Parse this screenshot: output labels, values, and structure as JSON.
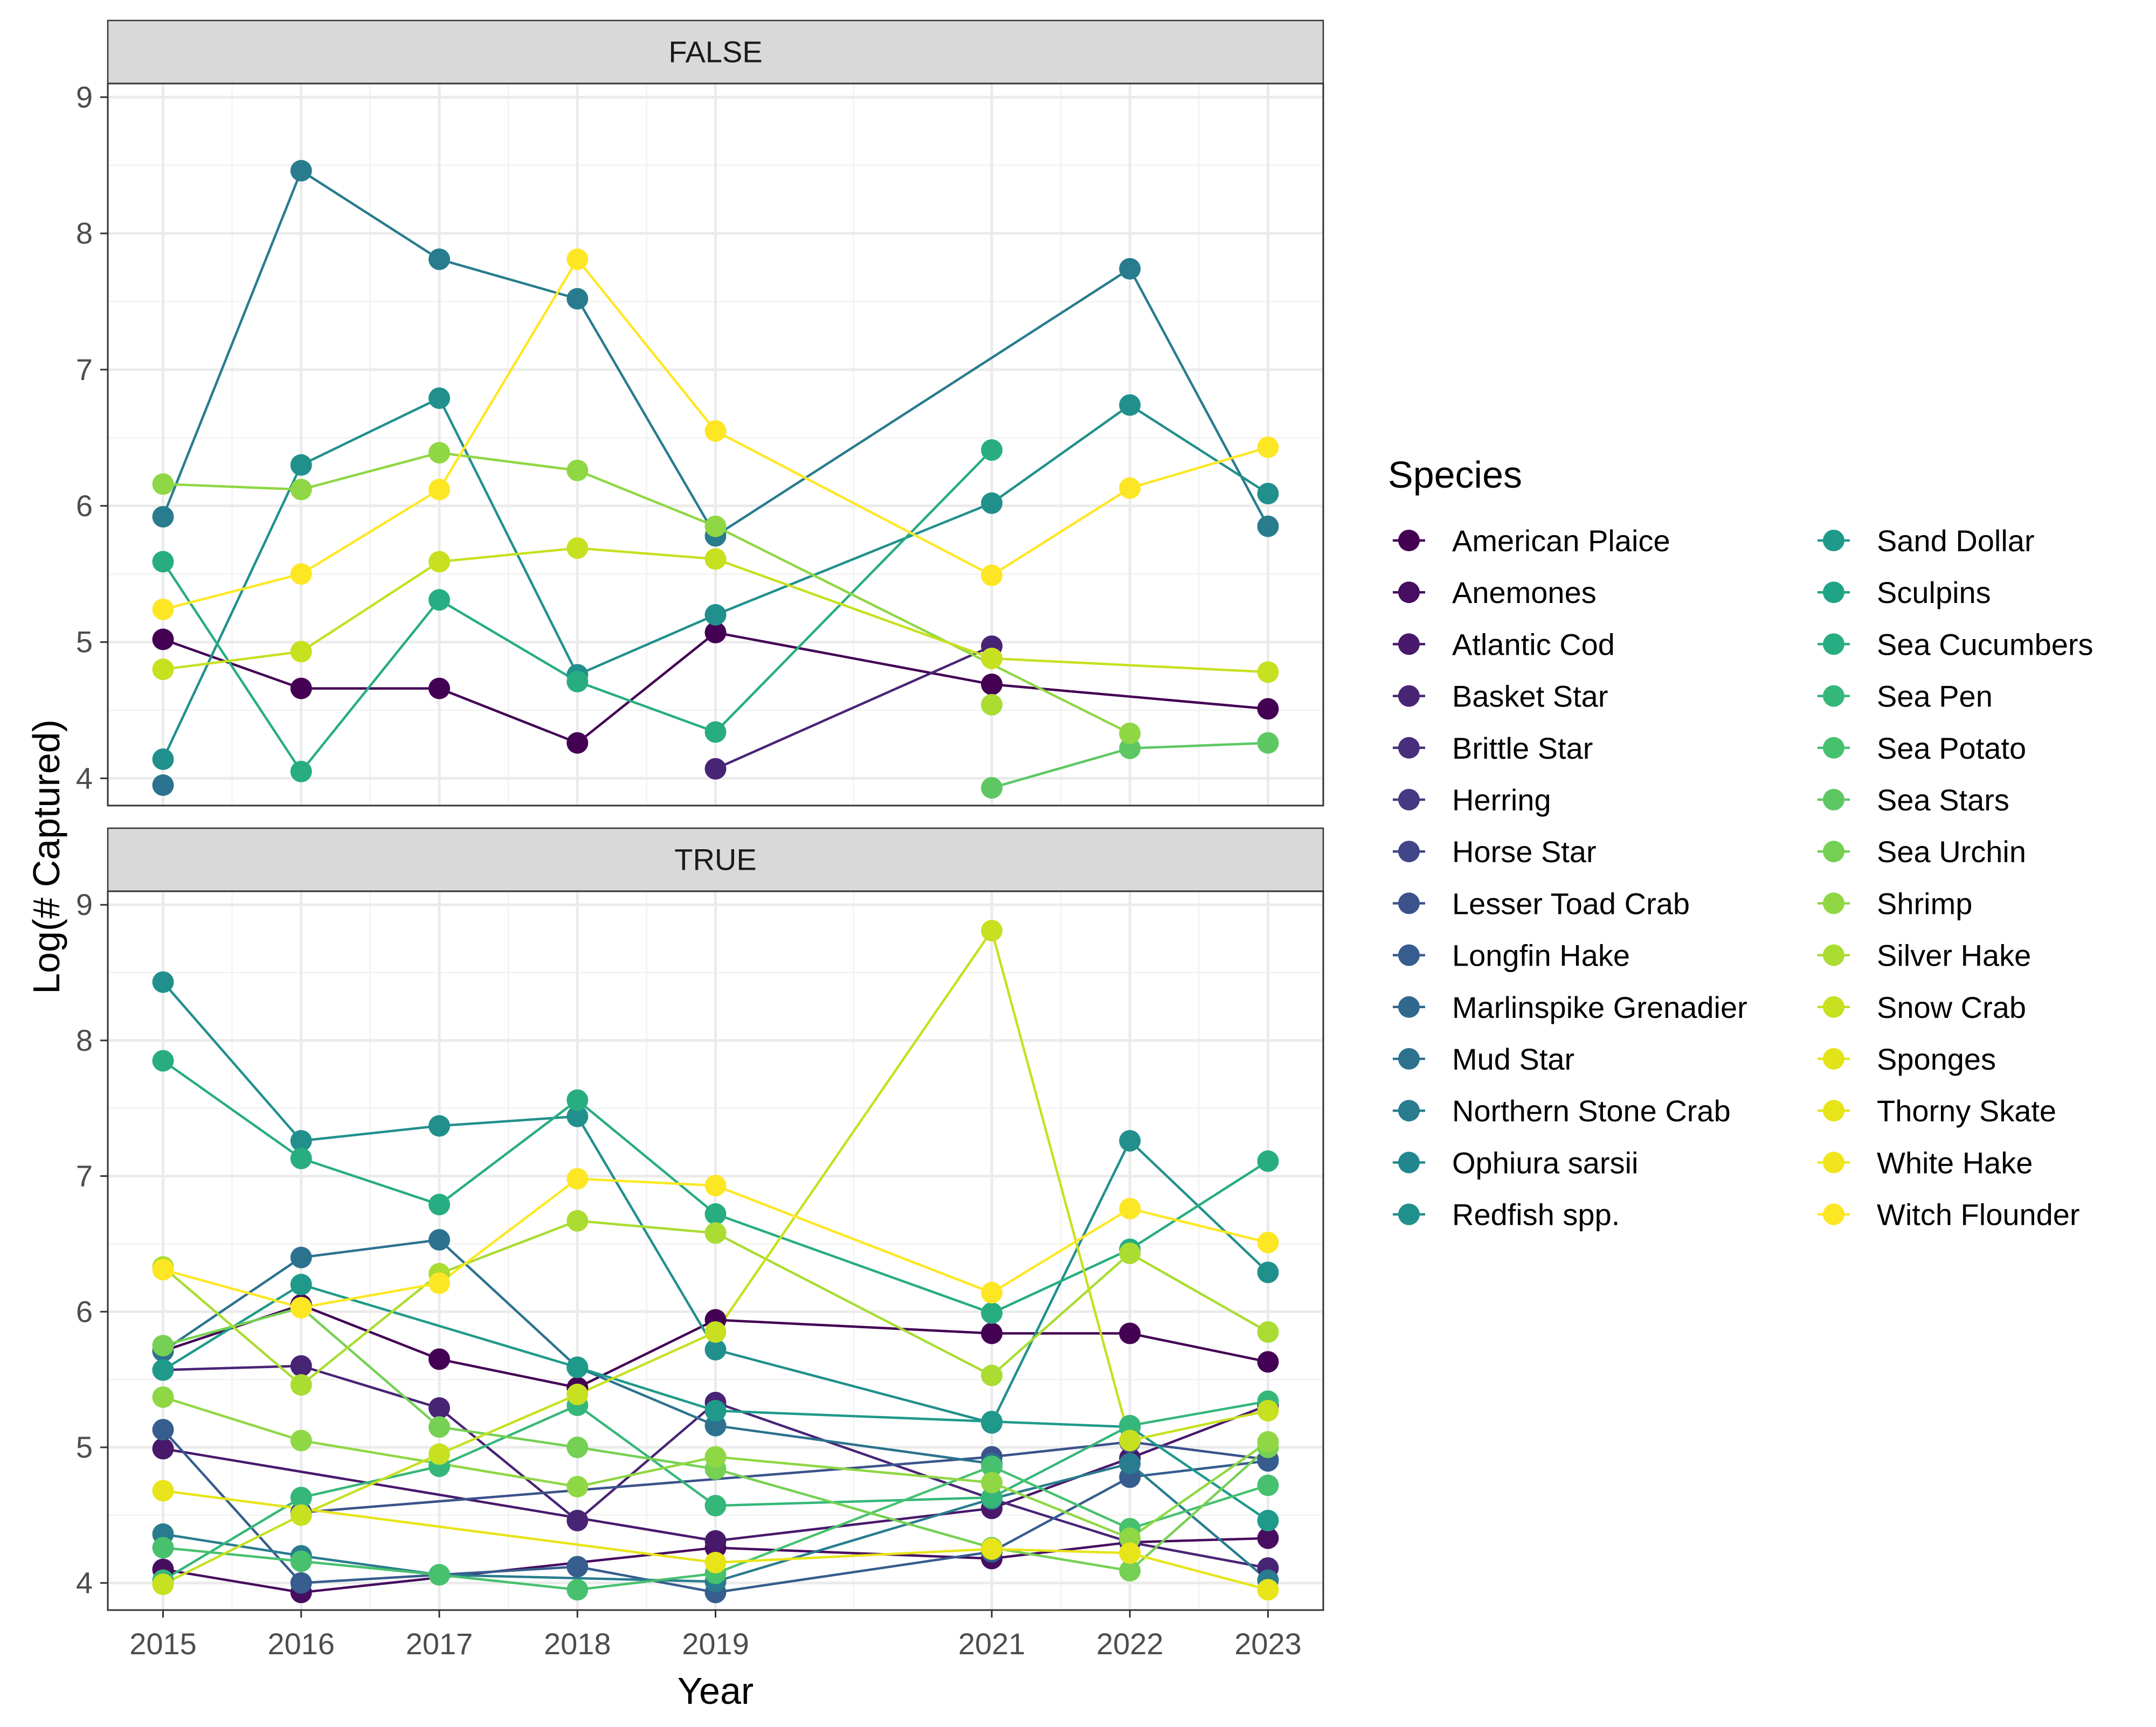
{
  "chart_data": {
    "type": "line",
    "xlabel": "Year",
    "ylabel": "Log(# Captured)",
    "x_ticks": [
      2015,
      2016,
      2017,
      2018,
      2019,
      2021,
      2022,
      2023
    ],
    "y_ticks": [
      4,
      5,
      6,
      7,
      8,
      9
    ],
    "ylim": [
      3.8,
      9.1
    ],
    "grid": true,
    "legend": {
      "title": "Species",
      "position": "right",
      "columns": 2
    },
    "species": [
      {
        "name": "American Plaice",
        "color": "#440154"
      },
      {
        "name": "Anemones",
        "color": "#470D60"
      },
      {
        "name": "Atlantic Cod",
        "color": "#48196B"
      },
      {
        "name": "Basket Star",
        "color": "#482475"
      },
      {
        "name": "Brittle Star",
        "color": "#472F7D"
      },
      {
        "name": "Herring",
        "color": "#443983"
      },
      {
        "name": "Horse Star",
        "color": "#404688"
      },
      {
        "name": "Lesser Toad Crab",
        "color": "#3B528B"
      },
      {
        "name": "Longfin Hake",
        "color": "#365D8D"
      },
      {
        "name": "Marlinspike Grenadier",
        "color": "#31688E"
      },
      {
        "name": "Mud Star",
        "color": "#2C728E"
      },
      {
        "name": "Northern Stone Crab",
        "color": "#287C8E"
      },
      {
        "name": "Ophiura sarsii",
        "color": "#24868E"
      },
      {
        "name": "Redfish spp.",
        "color": "#21908C"
      },
      {
        "name": "Sand Dollar",
        "color": "#1F9A8A"
      },
      {
        "name": "Sculpins",
        "color": "#20A486"
      },
      {
        "name": "Sea Cucumbers",
        "color": "#27AD81"
      },
      {
        "name": "Sea Pen",
        "color": "#35B779"
      },
      {
        "name": "Sea Potato",
        "color": "#47C16E"
      },
      {
        "name": "Sea Stars",
        "color": "#5DC863"
      },
      {
        "name": "Sea Urchin",
        "color": "#75D054"
      },
      {
        "name": "Shrimp",
        "color": "#8FD744"
      },
      {
        "name": "Silver Hake",
        "color": "#AADC32"
      },
      {
        "name": "Snow Crab",
        "color": "#C7E020"
      },
      {
        "name": "Sponges",
        "color": "#E3E418"
      },
      {
        "name": "Thorny Skate",
        "color": "#E7E419"
      },
      {
        "name": "White Hake",
        "color": "#F1E51D"
      },
      {
        "name": "Witch Flounder",
        "color": "#FDE725"
      }
    ],
    "panels": [
      {
        "title": "FALSE",
        "series": [
          {
            "name": "American Plaice",
            "x": [
              2015,
              2016,
              2017,
              2018,
              2019,
              2021,
              2023
            ],
            "y": [
              5.02,
              4.66,
              4.66,
              4.26,
              5.07,
              4.69,
              4.51
            ]
          },
          {
            "name": "Basket Star",
            "x": [
              2019,
              2021
            ],
            "y": [
              4.07,
              4.97
            ]
          },
          {
            "name": "Mud Star",
            "x": [
              2015
            ],
            "y": [
              3.95
            ]
          },
          {
            "name": "Northern Stone Crab",
            "x": [
              2015,
              2016,
              2017,
              2018,
              2019,
              2022,
              2023
            ],
            "y": [
              5.92,
              8.46,
              7.81,
              7.52,
              5.78,
              7.74,
              5.85
            ]
          },
          {
            "name": "Redfish spp.",
            "x": [
              2015,
              2016,
              2017,
              2018,
              2019,
              2021,
              2022,
              2023
            ],
            "y": [
              4.14,
              6.3,
              6.79,
              4.76,
              5.2,
              6.02,
              6.74,
              6.09
            ]
          },
          {
            "name": "Sea Cucumbers",
            "x": [
              2015,
              2016,
              2017,
              2018,
              2019,
              2021
            ],
            "y": [
              5.59,
              4.05,
              5.31,
              4.71,
              4.34,
              6.41
            ]
          },
          {
            "name": "Sea Stars",
            "x": [
              2021,
              2022,
              2023
            ],
            "y": [
              3.93,
              4.22,
              4.26
            ]
          },
          {
            "name": "Shrimp",
            "x": [
              2015,
              2016,
              2017,
              2018,
              2019,
              2022
            ],
            "y": [
              6.16,
              6.12,
              6.39,
              6.26,
              5.85,
              4.33
            ]
          },
          {
            "name": "Silver Hake",
            "x": [
              2021
            ],
            "y": [
              4.54
            ]
          },
          {
            "name": "Snow Crab",
            "x": [
              2015,
              2016,
              2017,
              2018,
              2019,
              2021,
              2023
            ],
            "y": [
              4.8,
              4.93,
              5.59,
              5.69,
              5.61,
              4.88,
              4.78
            ]
          },
          {
            "name": "Witch Flounder",
            "x": [
              2015,
              2016,
              2017,
              2018,
              2019,
              2021,
              2022,
              2023
            ],
            "y": [
              5.24,
              5.5,
              6.12,
              7.81,
              6.55,
              5.49,
              6.13,
              6.43
            ]
          }
        ]
      },
      {
        "title": "TRUE",
        "series": [
          {
            "name": "American Plaice",
            "x": [
              2015,
              2016,
              2017,
              2018,
              2019,
              2021,
              2022,
              2023
            ],
            "y": [
              5.71,
              6.05,
              5.65,
              5.44,
              5.94,
              5.84,
              5.84,
              5.63
            ]
          },
          {
            "name": "Anemones",
            "x": [
              2015,
              2016,
              2019,
              2021,
              2022,
              2023
            ],
            "y": [
              4.1,
              3.93,
              4.26,
              4.18,
              4.3,
              4.33
            ]
          },
          {
            "name": "Atlantic Cod",
            "x": [
              2015,
              2019,
              2021,
              2022,
              2023
            ],
            "y": [
              4.99,
              4.31,
              4.55,
              4.92,
              5.31
            ]
          },
          {
            "name": "Basket Star",
            "x": [
              2015,
              2016,
              2017,
              2018,
              2019,
              2021,
              2022,
              2023
            ],
            "y": [
              5.57,
              5.6,
              5.29,
              4.46,
              5.33,
              4.62,
              4.3,
              4.11
            ]
          },
          {
            "name": "Lesser Toad Crab",
            "x": [
              2016,
              2021,
              2022,
              2023
            ],
            "y": [
              4.52,
              4.93,
              5.04,
              4.91
            ]
          },
          {
            "name": "Longfin Hake",
            "x": [
              2015,
              2016,
              2018,
              2019,
              2021,
              2022,
              2023
            ],
            "y": [
              5.13,
              4.0,
              4.12,
              3.93,
              4.23,
              4.78,
              4.9
            ]
          },
          {
            "name": "Northern Stone Crab",
            "x": [
              2015,
              2016,
              2017,
              2019,
              2021,
              2022,
              2023
            ],
            "y": [
              4.36,
              4.2,
              4.06,
              4.01,
              4.62,
              4.88,
              4.02
            ]
          },
          {
            "name": "Mud Star",
            "x": [
              2015,
              2016,
              2017,
              2018,
              2019,
              2021
            ],
            "y": [
              5.71,
              6.4,
              6.53,
              5.59,
              5.16,
              4.88
            ]
          },
          {
            "name": "Redfish spp.",
            "x": [
              2015,
              2016,
              2017,
              2018,
              2019,
              2021,
              2022,
              2023
            ],
            "y": [
              8.43,
              7.26,
              7.37,
              7.44,
              5.72,
              5.18,
              7.26,
              6.29
            ]
          },
          {
            "name": "Sand Dollar",
            "x": [
              2015,
              2016,
              2018,
              2019,
              2021,
              2022,
              2023
            ],
            "y": [
              5.57,
              6.2,
              5.59,
              5.27,
              5.19,
              5.15,
              4.46
            ]
          },
          {
            "name": "Sea Cucumbers",
            "x": [
              2015,
              2016,
              2017,
              2018,
              2019,
              2021,
              2022,
              2023
            ],
            "y": [
              7.85,
              7.13,
              6.79,
              7.56,
              6.72,
              5.99,
              6.46,
              7.11
            ]
          },
          {
            "name": "Sea Pen",
            "x": [
              2015,
              2016,
              2017,
              2018,
              2019,
              2021,
              2022,
              2023
            ],
            "y": [
              4.02,
              4.63,
              4.86,
              5.31,
              4.57,
              4.63,
              5.16,
              5.34
            ]
          },
          {
            "name": "Sea Potato",
            "x": [
              2015,
              2016,
              2017,
              2018,
              2019,
              2021,
              2022,
              2023
            ],
            "y": [
              4.26,
              4.16,
              4.06,
              3.95,
              4.07,
              4.86,
              4.4,
              4.72
            ]
          },
          {
            "name": "Sea Urchin",
            "x": [
              2015,
              2016,
              2017,
              2018,
              2019,
              2021,
              2022,
              2023
            ],
            "y": [
              5.75,
              6.03,
              5.15,
              5.0,
              4.84,
              4.26,
              4.09,
              5.0
            ]
          },
          {
            "name": "Shrimp",
            "x": [
              2015,
              2016,
              2018,
              2019,
              2021,
              2022,
              2023
            ],
            "y": [
              5.37,
              5.05,
              4.71,
              4.93,
              4.74,
              4.33,
              5.04
            ]
          },
          {
            "name": "Silver Hake",
            "x": [
              2015,
              2016,
              2017,
              2018,
              2019,
              2021,
              2022,
              2023
            ],
            "y": [
              6.33,
              5.46,
              6.28,
              6.67,
              6.58,
              5.53,
              6.43,
              5.85
            ]
          },
          {
            "name": "Snow Crab",
            "x": [
              2015,
              2016,
              2017,
              2018,
              2019,
              2021,
              2022,
              2023
            ],
            "y": [
              3.99,
              4.5,
              4.95,
              5.39,
              5.85,
              8.81,
              5.05,
              5.27
            ]
          },
          {
            "name": "Thorny Skate",
            "x": [
              2015,
              2019,
              2021,
              2022,
              2023
            ],
            "y": [
              4.68,
              4.15,
              4.25,
              4.22,
              3.95
            ]
          },
          {
            "name": "Witch Flounder",
            "x": [
              2015,
              2016,
              2017,
              2018,
              2019,
              2021,
              2022,
              2023
            ],
            "y": [
              6.31,
              6.03,
              6.21,
              6.98,
              6.93,
              6.14,
              6.76,
              6.51
            ]
          }
        ]
      }
    ]
  }
}
